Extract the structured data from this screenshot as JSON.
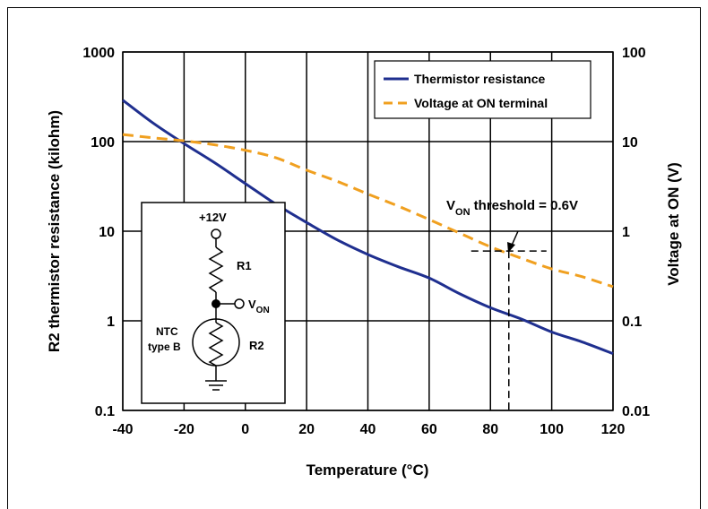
{
  "chart_data": {
    "type": "line",
    "xlabel": "Temperature (°C)",
    "ylabel_left": "R2 thermistor resistance (kilohm)",
    "ylabel_right": "Voltage at ON (V)",
    "xlim": [
      -40,
      120
    ],
    "ylim_left": [
      0.1,
      1000
    ],
    "ylim_right": [
      0.01,
      100
    ],
    "y_scale": "log",
    "grid": true,
    "legend_position": "top-right",
    "x_ticks": [
      "-40",
      "-20",
      "0",
      "20",
      "40",
      "60",
      "80",
      "100",
      "120"
    ],
    "y_left_ticks": [
      "1000",
      "100",
      "10",
      "1",
      "0.1"
    ],
    "y_right_ticks": [
      "100",
      "10",
      "1",
      "0.1",
      "0.01"
    ],
    "series": [
      {
        "name": "Thermistor resistance",
        "axis": "left",
        "color": "#1f2f8f",
        "style": "solid",
        "x": [
          -40,
          -30,
          -20,
          -10,
          0,
          10,
          20,
          30,
          40,
          50,
          60,
          70,
          80,
          90,
          100,
          110,
          120
        ],
        "y": [
          290,
          160,
          95,
          58,
          34,
          20,
          12.5,
          8,
          5.5,
          4,
          3,
          2,
          1.4,
          1.05,
          0.75,
          0.58,
          0.43
        ]
      },
      {
        "name": "Voltage at ON terminal",
        "axis": "right",
        "color": "#f0a020",
        "style": "dashed",
        "x": [
          -40,
          -30,
          -20,
          -10,
          0,
          10,
          20,
          30,
          40,
          50,
          60,
          70,
          80,
          90,
          100,
          110,
          120
        ],
        "y": [
          12,
          11,
          10.2,
          9.2,
          8,
          6.6,
          4.8,
          3.6,
          2.6,
          1.9,
          1.35,
          0.95,
          0.67,
          0.5,
          0.38,
          0.31,
          0.24
        ]
      }
    ],
    "annotation": {
      "text_main": "V",
      "text_sub": "ON",
      "text_rest": " threshold = 0.6V",
      "x": 86,
      "y_right": 0.6
    }
  },
  "inset": {
    "supply_label": "+12V",
    "r1_label": "R1",
    "von_main": "V",
    "von_sub": "ON",
    "ntc_line1": "NTC",
    "ntc_line2": "type B",
    "r2_label": "R2"
  }
}
